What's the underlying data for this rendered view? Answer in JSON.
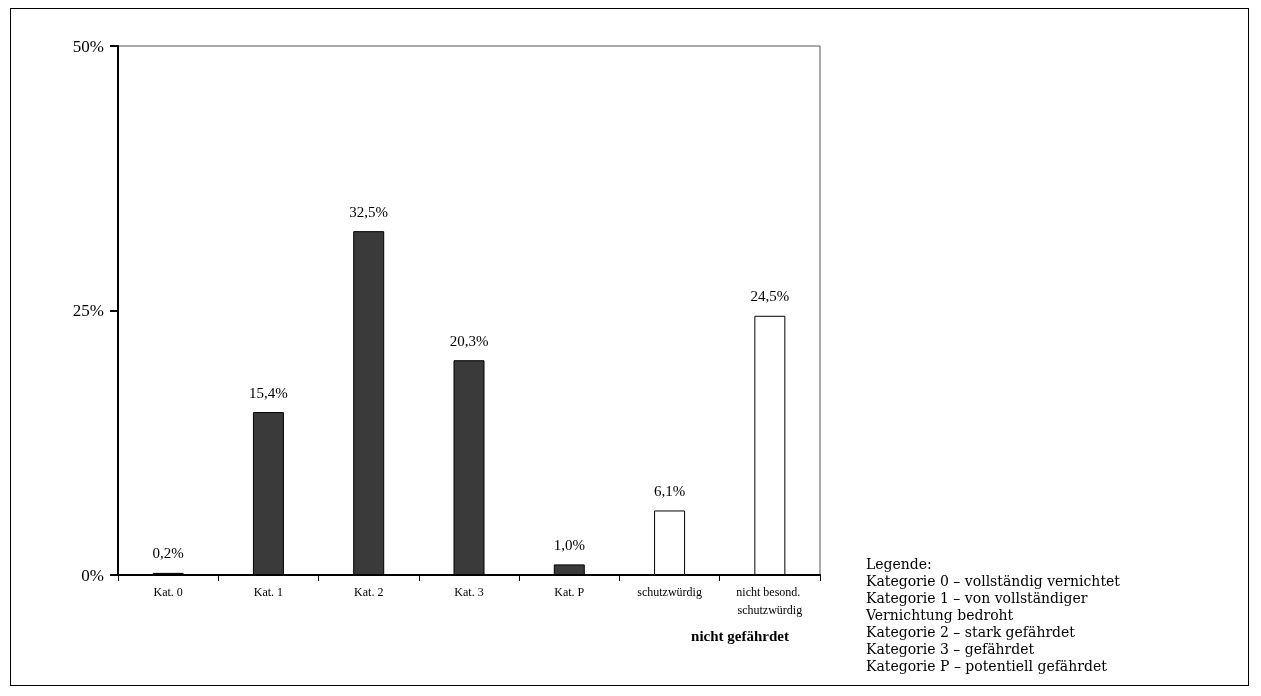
{
  "chart_data": {
    "type": "bar",
    "categories": [
      "Kat. 0",
      "Kat. 1",
      "Kat. 2",
      "Kat. 3",
      "Kat. P",
      "schutzwürdig",
      "nicht besond. schutzwürdig"
    ],
    "values": [
      0.2,
      15.4,
      32.5,
      20.3,
      1.0,
      6.1,
      24.5
    ],
    "value_labels": [
      "0,2%",
      "15,4%",
      "32,5%",
      "20,3%",
      "1,0%",
      "6,1%",
      "24,5%"
    ],
    "colors": [
      "#3a3a3a",
      "#3a3a3a",
      "#3a3a3a",
      "#3a3a3a",
      "#3a3a3a",
      "#ffffff",
      "#ffffff"
    ],
    "ylim": [
      0,
      50
    ],
    "yticks": [
      {
        "value": 0,
        "label": "0%"
      },
      {
        "value": 25,
        "label": "25%"
      },
      {
        "value": 50,
        "label": "50%"
      }
    ],
    "grid": false,
    "annotations": [
      {
        "text": "nicht gefährdet"
      },
      {
        "text": "Legende:"
      },
      {
        "text": "Kategorie 0 – vollständig vernichtet"
      },
      {
        "text": "Kategorie 1 – von vollständiger Vernichtung bedroht"
      },
      {
        "text": "Kategorie 2 – stark gefährdet"
      },
      {
        "text": "Kategorie 3 – gefährdet"
      },
      {
        "text": "Kategorie P – potentiell gefährdet"
      }
    ]
  }
}
